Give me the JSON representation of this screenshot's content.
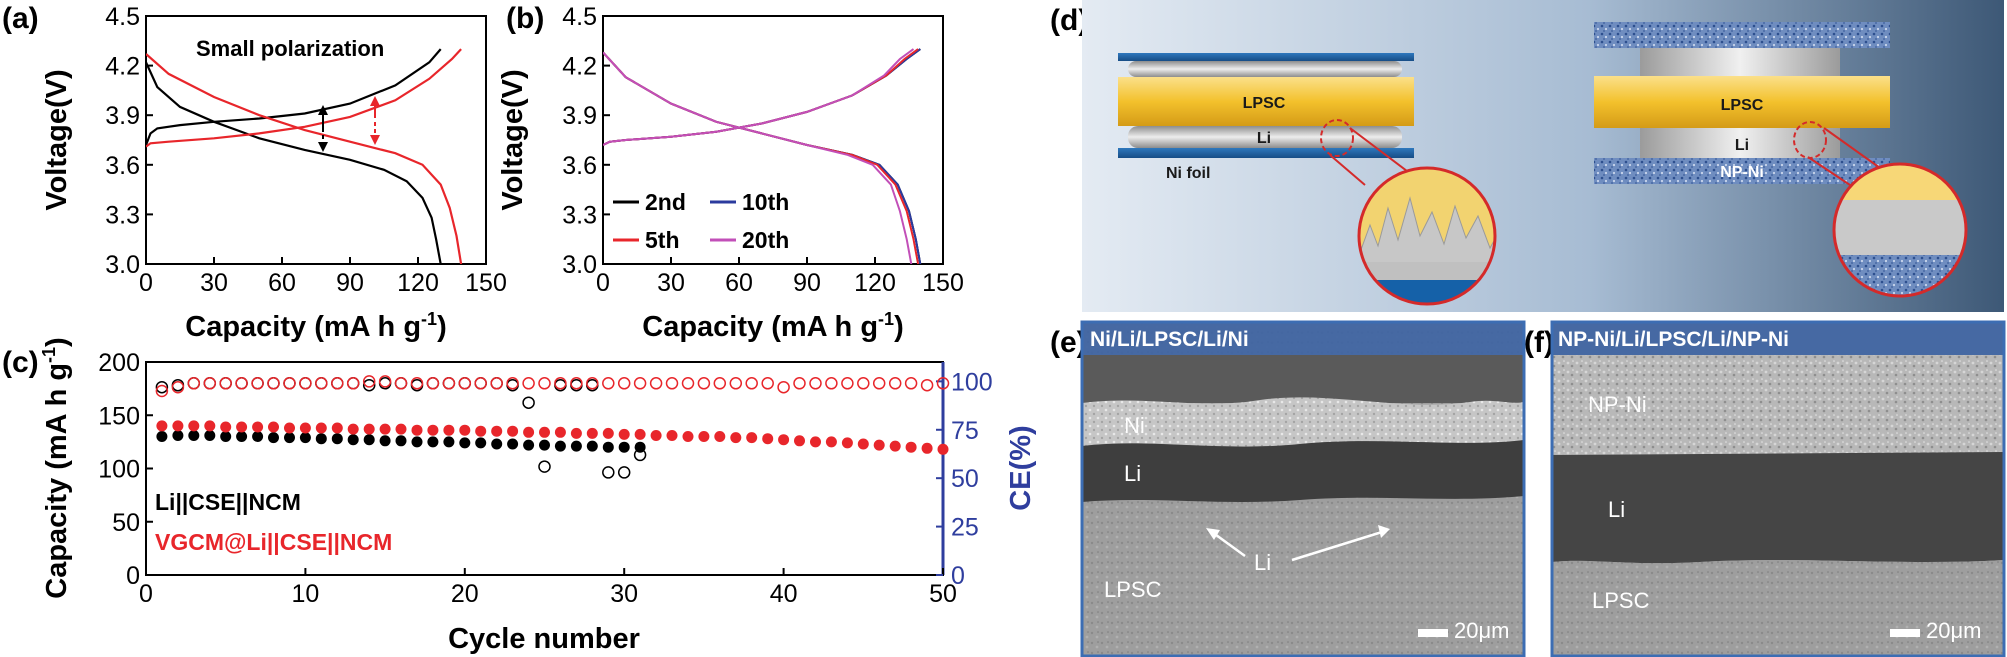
{
  "panels": {
    "a": "(a)",
    "b": "(b)",
    "c": "(c)",
    "d": "(d)",
    "e": "(e)",
    "f": "(f)"
  },
  "colors": {
    "black_series": "#000000",
    "red_series": "#e8262b",
    "blue_series": "#2b3b9e",
    "purple_series": "#c24fb8",
    "ce_axis": "#2f3e9e",
    "lpsc": "#f5c12e",
    "ni_foil": "#1f5fa0",
    "np_ni": "#5f7fb2"
  },
  "chart_data": [
    {
      "type": "line",
      "panel": "a",
      "xlabel": "Capacity (mA h g-1)",
      "ylabel": "Voltage(V)",
      "xlim": [
        0,
        150
      ],
      "ylim": [
        3.0,
        4.5
      ],
      "xticks": [
        "0",
        "30",
        "60",
        "90",
        "120",
        "150"
      ],
      "yticks": [
        "3.0",
        "3.3",
        "3.6",
        "3.9",
        "4.2",
        "4.5"
      ],
      "annotation": "Small polarization",
      "series": [
        {
          "color": "black",
          "part": "charge",
          "x": [
            0,
            2,
            5,
            15,
            30,
            50,
            70,
            90,
            110,
            125,
            130
          ],
          "y": [
            3.72,
            3.79,
            3.82,
            3.84,
            3.86,
            3.88,
            3.91,
            3.97,
            4.08,
            4.22,
            4.3
          ]
        },
        {
          "color": "black",
          "part": "discharge",
          "x": [
            0,
            5,
            15,
            30,
            50,
            70,
            90,
            105,
            115,
            122,
            126,
            128,
            130
          ],
          "y": [
            4.22,
            4.07,
            3.95,
            3.86,
            3.76,
            3.69,
            3.63,
            3.57,
            3.5,
            3.4,
            3.28,
            3.15,
            3.0
          ]
        },
        {
          "color": "red",
          "part": "charge",
          "x": [
            0,
            2,
            10,
            30,
            50,
            70,
            90,
            110,
            125,
            135,
            139
          ],
          "y": [
            3.71,
            3.73,
            3.74,
            3.76,
            3.79,
            3.83,
            3.89,
            3.99,
            4.12,
            4.24,
            4.3
          ]
        },
        {
          "color": "red",
          "part": "discharge",
          "x": [
            0,
            10,
            30,
            50,
            70,
            90,
            110,
            122,
            130,
            134,
            137,
            139
          ],
          "y": [
            4.27,
            4.15,
            4.01,
            3.9,
            3.81,
            3.74,
            3.67,
            3.6,
            3.48,
            3.34,
            3.17,
            3.0
          ]
        }
      ]
    },
    {
      "type": "line",
      "panel": "b",
      "xlabel": "Capacity (mA h g-1)",
      "ylabel": "Voltage(V)",
      "xlim": [
        0,
        150
      ],
      "ylim": [
        3.0,
        4.5
      ],
      "xticks": [
        "0",
        "30",
        "60",
        "90",
        "120",
        "150"
      ],
      "yticks": [
        "3.0",
        "3.3",
        "3.6",
        "3.9",
        "4.2",
        "4.5"
      ],
      "legend_position": "bottom-left",
      "series": [
        {
          "name": "2nd",
          "color": "black",
          "charge": {
            "x": [
              0,
              3,
              10,
              30,
              50,
              70,
              90,
              110,
              125,
              134,
              140
            ],
            "y": [
              3.72,
              3.74,
              3.75,
              3.77,
              3.8,
              3.85,
              3.92,
              4.02,
              4.14,
              4.24,
              4.3
            ]
          },
          "discharge": {
            "x": [
              0,
              10,
              30,
              50,
              70,
              90,
              110,
              122,
              130,
              135,
              138,
              140
            ],
            "y": [
              4.28,
              4.13,
              3.97,
              3.86,
              3.79,
              3.72,
              3.66,
              3.6,
              3.48,
              3.32,
              3.15,
              3.0
            ]
          }
        },
        {
          "name": "10th",
          "color": "blue",
          "charge": {
            "x": [
              0,
              3,
              10,
              30,
              50,
              70,
              90,
              110,
              125,
              134,
              140
            ],
            "y": [
              3.72,
              3.74,
              3.75,
              3.77,
              3.8,
              3.85,
              3.92,
              4.02,
              4.14,
              4.24,
              4.3
            ]
          },
          "discharge": {
            "x": [
              0,
              10,
              30,
              50,
              70,
              90,
              110,
              122,
              130,
              135,
              138,
              140
            ],
            "y": [
              4.28,
              4.13,
              3.97,
              3.86,
              3.79,
              3.72,
              3.66,
              3.6,
              3.48,
              3.32,
              3.15,
              3.0
            ]
          }
        },
        {
          "name": "5th",
          "color": "red",
          "charge": {
            "x": [
              0,
              3,
              10,
              30,
              50,
              70,
              90,
              110,
              125,
              133,
              139
            ],
            "y": [
              3.72,
              3.74,
              3.75,
              3.77,
              3.8,
              3.85,
              3.92,
              4.02,
              4.14,
              4.24,
              4.3
            ]
          },
          "discharge": {
            "x": [
              0,
              10,
              30,
              50,
              70,
              90,
              110,
              121,
              129,
              134,
              137,
              139
            ],
            "y": [
              4.28,
              4.13,
              3.97,
              3.86,
              3.79,
              3.72,
              3.66,
              3.6,
              3.48,
              3.32,
              3.15,
              3.0
            ]
          }
        },
        {
          "name": "20th",
          "color": "purple",
          "charge": {
            "x": [
              0,
              3,
              10,
              30,
              50,
              70,
              90,
              110,
              124,
              131,
              137
            ],
            "y": [
              3.72,
              3.74,
              3.75,
              3.77,
              3.8,
              3.85,
              3.92,
              4.02,
              4.14,
              4.24,
              4.3
            ]
          },
          "discharge": {
            "x": [
              0,
              10,
              30,
              50,
              70,
              90,
              108,
              119,
              127,
              131,
              134,
              136
            ],
            "y": [
              4.28,
              4.13,
              3.97,
              3.86,
              3.79,
              3.72,
              3.66,
              3.6,
              3.48,
              3.32,
              3.15,
              3.0
            ]
          }
        }
      ]
    },
    {
      "type": "scatter",
      "panel": "c",
      "xlabel": "Cycle number",
      "ylabel": "Capacity (mA h g-1)",
      "ylabel_right": "CE(%)",
      "xlim": [
        0,
        50
      ],
      "ylim": [
        0,
        200
      ],
      "ylim_right": [
        0,
        110
      ],
      "xticks": [
        "0",
        "10",
        "20",
        "30",
        "40",
        "50"
      ],
      "yticks": [
        "0",
        "50",
        "100",
        "150",
        "200"
      ],
      "yticks_right": [
        "0",
        "25",
        "50",
        "75",
        "100"
      ],
      "legend_position": "bottom-left",
      "series": [
        {
          "name": "Li||CSE||NCM",
          "color": "black",
          "metric": "capacity",
          "marker": "filled",
          "x": [
            1,
            2,
            3,
            4,
            5,
            6,
            7,
            8,
            9,
            10,
            11,
            12,
            13,
            14,
            15,
            16,
            17,
            18,
            19,
            20,
            21,
            22,
            23,
            24,
            25,
            26,
            27,
            28,
            29,
            30,
            31
          ],
          "y": [
            130,
            131,
            131,
            131,
            130,
            130,
            130,
            129,
            129,
            129,
            128,
            128,
            127,
            127,
            126,
            126,
            125,
            125,
            125,
            124,
            124,
            123,
            123,
            122,
            122,
            121,
            121,
            121,
            120,
            120,
            120
          ]
        },
        {
          "name": "VGCM@Li||CSE||NCM",
          "color": "red",
          "metric": "capacity",
          "marker": "filled",
          "x": [
            1,
            2,
            3,
            4,
            5,
            6,
            7,
            8,
            9,
            10,
            11,
            12,
            13,
            14,
            15,
            16,
            17,
            18,
            19,
            20,
            21,
            22,
            23,
            24,
            25,
            26,
            27,
            28,
            29,
            30,
            31,
            32,
            33,
            34,
            35,
            36,
            37,
            38,
            39,
            40,
            41,
            42,
            43,
            44,
            45,
            46,
            47,
            48,
            49,
            50
          ],
          "y": [
            140,
            140,
            140,
            140,
            139,
            139,
            139,
            139,
            138,
            138,
            138,
            138,
            137,
            137,
            137,
            137,
            136,
            136,
            136,
            136,
            135,
            135,
            135,
            134,
            134,
            134,
            133,
            133,
            133,
            132,
            132,
            131,
            131,
            130,
            130,
            130,
            129,
            129,
            128,
            127,
            126,
            125,
            125,
            124,
            123,
            122,
            121,
            120,
            119,
            118
          ]
        },
        {
          "name": "Li||CSE||NCM CE",
          "color": "black",
          "metric": "ce",
          "marker": "open",
          "x": [
            1,
            2,
            3,
            4,
            5,
            6,
            7,
            8,
            9,
            10,
            11,
            12,
            13,
            14,
            15,
            16,
            17,
            18,
            19,
            20,
            21,
            22,
            23,
            24,
            25,
            26,
            27,
            28,
            29,
            30,
            31
          ],
          "y": [
            97,
            98,
            99,
            99,
            99,
            99,
            99,
            99,
            99,
            99,
            99,
            99,
            99,
            98,
            99,
            99,
            98,
            99,
            99,
            99,
            99,
            99,
            98,
            89,
            56,
            98,
            98,
            98,
            53,
            53,
            62
          ]
        },
        {
          "name": "VGCM@Li||CSE||NCM CE",
          "color": "red",
          "metric": "ce",
          "marker": "open",
          "x": [
            1,
            2,
            3,
            4,
            5,
            6,
            7,
            8,
            9,
            10,
            11,
            12,
            13,
            14,
            15,
            16,
            17,
            18,
            19,
            20,
            21,
            22,
            23,
            24,
            25,
            26,
            27,
            28,
            29,
            30,
            31,
            32,
            33,
            34,
            35,
            36,
            37,
            38,
            39,
            40,
            41,
            42,
            43,
            44,
            45,
            46,
            47,
            48,
            49,
            50
          ],
          "y": [
            95,
            97,
            99,
            99,
            99,
            99,
            99,
            99,
            99,
            99,
            99,
            99,
            99,
            100,
            100,
            99,
            99,
            99,
            99,
            99,
            99,
            99,
            99,
            99,
            99,
            99,
            99,
            99,
            99,
            99,
            99,
            99,
            99,
            99,
            99,
            99,
            99,
            99,
            99,
            97,
            99,
            99,
            99,
            99,
            99,
            99,
            99,
            99,
            98,
            99
          ]
        }
      ]
    }
  ],
  "diagram": {
    "left_cell": {
      "layer_top": "LPSC",
      "layer_mid": "Li",
      "layer_bottom": "Ni foil"
    },
    "right_cell": {
      "layer_top": "LPSC",
      "layer_mid": "Li",
      "layer_bottom": "NP-Ni"
    }
  },
  "sem_e": {
    "header": "Ni/Li/LPSC/Li/Ni",
    "labels": [
      "Ni",
      "Li",
      "Li",
      "LPSC"
    ],
    "scale": "20μm"
  },
  "sem_f": {
    "header": "NP-Ni/Li/LPSC/Li/NP-Ni",
    "labels": [
      "NP-Ni",
      "Li",
      "LPSC"
    ],
    "scale": "20μm"
  }
}
